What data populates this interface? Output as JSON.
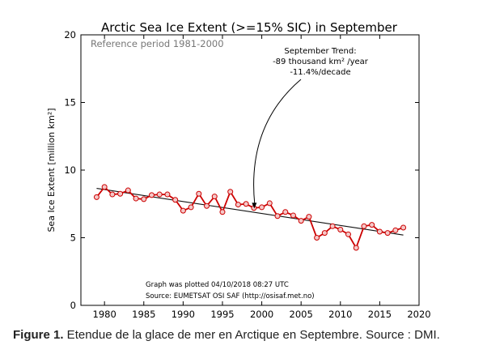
{
  "chart_data": {
    "type": "line",
    "title": "Arctic Sea Ice Extent (>=15% SIC) in September",
    "subtitle": "Reference period 1981-2000",
    "ylabel": "Sea Ice Extent [million km²]",
    "xlabel": "",
    "xlim": [
      1977,
      2020
    ],
    "ylim": [
      0,
      20
    ],
    "xticks": [
      1980,
      1985,
      1990,
      1995,
      2000,
      2005,
      2010,
      2015,
      2020
    ],
    "yticks": [
      0,
      5,
      10,
      15,
      20
    ],
    "grid": false,
    "series": [
      {
        "color": "#cc0000",
        "x": [
          1979,
          1980,
          1981,
          1982,
          1983,
          1984,
          1985,
          1986,
          1987,
          1988,
          1989,
          1990,
          1991,
          1992,
          1993,
          1994,
          1995,
          1996,
          1997,
          1998,
          1999,
          2000,
          2001,
          2002,
          2003,
          2004,
          2005,
          2006,
          2007,
          2008,
          2009,
          2010,
          2011,
          2012,
          2013,
          2014,
          2015,
          2016,
          2017,
          2018
        ],
        "values": [
          8.0,
          8.75,
          8.2,
          8.25,
          8.5,
          7.9,
          7.85,
          8.15,
          8.2,
          8.2,
          7.8,
          7.0,
          7.25,
          8.25,
          7.35,
          8.05,
          6.9,
          8.4,
          7.45,
          7.5,
          7.2,
          7.25,
          7.55,
          6.6,
          6.9,
          6.65,
          6.25,
          6.55,
          5.0,
          5.35,
          5.85,
          5.6,
          5.25,
          4.25,
          5.85,
          5.95,
          5.45,
          5.35,
          5.55,
          5.75
        ]
      }
    ],
    "trend": {
      "x": [
        1979,
        2018
      ],
      "values": [
        8.65,
        5.2
      ],
      "color": "#111111"
    },
    "annotation": {
      "lines": [
        "September Trend:",
        "-89 thousand km² /year",
        "-11.4%/decade"
      ],
      "arrow_to": {
        "x": 1999,
        "y": 7.1
      }
    },
    "footer_lines": [
      "Graph was plotted 04/10/2018 08:27 UTC",
      "Source: EUMETSAT OSI SAF (http://osisaf.met.no)"
    ]
  },
  "caption": {
    "label": "Figure 1.",
    "text": " Etendue de la glace de mer en Arctique en Septembre. Source : DMI."
  }
}
